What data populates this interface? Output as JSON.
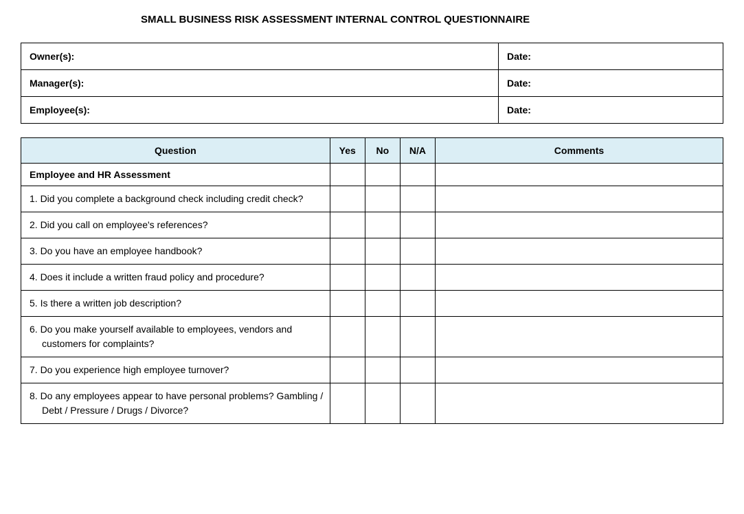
{
  "title": "SMALL BUSINESS RISK ASSESSMENT INTERNAL CONTROL QUESTIONNAIRE",
  "info_rows": [
    {
      "label": "Owner(s):",
      "date_label": "Date:"
    },
    {
      "label": "Manager(s):",
      "date_label": "Date:"
    },
    {
      "label": "Employee(s):",
      "date_label": "Date:"
    }
  ],
  "headers": {
    "question": "Question",
    "yes": "Yes",
    "no": "No",
    "na": "N/A",
    "comments": "Comments"
  },
  "section_title": "Employee and HR Assessment",
  "questions": [
    {
      "num": "1.",
      "text": "Did you complete a background check including credit check?"
    },
    {
      "num": "2.",
      "text": "Did you call on employee's references?"
    },
    {
      "num": "3.",
      "text": "Do you have an employee handbook?"
    },
    {
      "num": "4.",
      "text": "Does it include a written fraud policy and procedure?"
    },
    {
      "num": "5.",
      "text": "Is there a written job description?"
    },
    {
      "num": "6.",
      "text": "Do you make yourself available to employees, vendors and customers for complaints?"
    },
    {
      "num": "7.",
      "text": "Do you experience high employee turnover?"
    },
    {
      "num": "8.",
      "text": "Do any employees appear to have personal problems? Gambling / Debt / Pressure / Drugs / Divorce?"
    }
  ],
  "colors": {
    "header_bg": "#dbeef5",
    "border": "#000000",
    "text": "#000000",
    "background": "#ffffff"
  }
}
